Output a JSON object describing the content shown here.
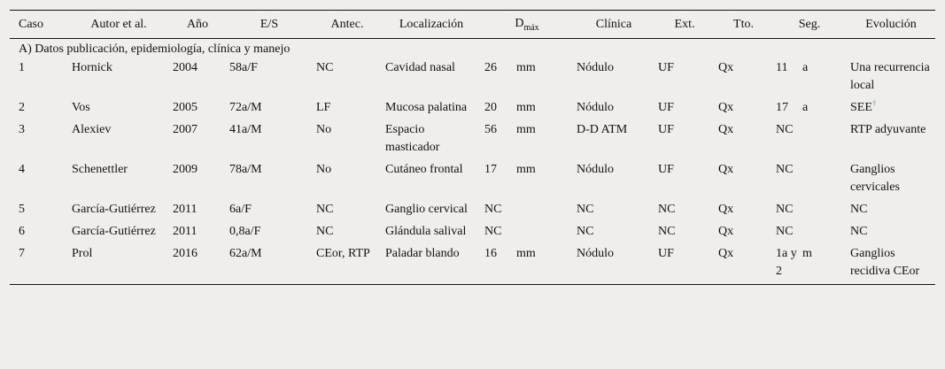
{
  "headers": {
    "caso": "Caso",
    "autor": "Autor et al.",
    "anio": "Año",
    "es": "E/S",
    "antec": "Antec.",
    "localizacion": "Localización",
    "dmax_main": "D",
    "dmax_sub": "máx",
    "clinica": "Clínica",
    "ext": "Ext.",
    "tto": "Tto.",
    "seg": "Seg.",
    "evolucion": "Evolución"
  },
  "section_label": "A) Datos publicación, epidemiología, clínica y manejo",
  "rows": [
    {
      "caso": "1",
      "autor": "Hornick",
      "anio": "2004",
      "es": "58a/F",
      "antec": "NC",
      "loc": "Cavidad nasal",
      "dmax_n": "26",
      "dmax_u": "mm",
      "clinica": "Nódulo",
      "ext": "UF",
      "tto": "Qx",
      "seg_n": "11",
      "seg_u": "a",
      "evol": "Una recurrencia local",
      "mark": ""
    },
    {
      "caso": "2",
      "autor": "Vos",
      "anio": "2005",
      "es": "72a/M",
      "antec": "LF",
      "loc": "Mucosa palatina",
      "dmax_n": "20",
      "dmax_u": "mm",
      "clinica": "Nódulo",
      "ext": "UF",
      "tto": "Qx",
      "seg_n": "17",
      "seg_u": "a",
      "evol": "SEE",
      "mark": "†"
    },
    {
      "caso": "3",
      "autor": "Alexiev",
      "anio": "2007",
      "es": "41a/M",
      "antec": "No",
      "loc": "Espacio masticador",
      "dmax_n": "56",
      "dmax_u": "mm",
      "clinica": "D-D ATM",
      "ext": "UF",
      "tto": "Qx",
      "seg_n": "NC",
      "seg_u": "",
      "evol": "RTP adyuvante",
      "mark": ""
    },
    {
      "caso": "4",
      "autor": "Schenettler",
      "anio": "2009",
      "es": "78a/M",
      "antec": "No",
      "loc": "Cutáneo frontal",
      "dmax_n": "17",
      "dmax_u": "mm",
      "clinica": "Nódulo",
      "ext": "UF",
      "tto": "Qx",
      "seg_n": "NC",
      "seg_u": "",
      "evol": "Ganglios cervicales",
      "mark": ""
    },
    {
      "caso": "5",
      "autor": "García-Gutiérrez",
      "anio": "2011",
      "es": "6a/F",
      "antec": "NC",
      "loc": "Ganglio cervical",
      "dmax_n": "NC",
      "dmax_u": "",
      "clinica": "NC",
      "ext": "NC",
      "tto": "Qx",
      "seg_n": "NC",
      "seg_u": "",
      "evol": "NC",
      "mark": ""
    },
    {
      "caso": "6",
      "autor": "García-Gutiérrez",
      "anio": "2011",
      "es": "0,8a/F",
      "antec": "NC",
      "loc": "Glándula salival",
      "dmax_n": "NC",
      "dmax_u": "",
      "clinica": "NC",
      "ext": "NC",
      "tto": "Qx",
      "seg_n": "NC",
      "seg_u": "",
      "evol": "NC",
      "mark": ""
    },
    {
      "caso": "7",
      "autor": "Prol",
      "anio": "2016",
      "es": "62a/M",
      "antec": "CEor, RTP",
      "loc": "Paladar blando",
      "dmax_n": "16",
      "dmax_u": "mm",
      "clinica": "Nódulo",
      "ext": "UF",
      "tto": "Qx",
      "seg_n": "1a y 2",
      "seg_u": "m",
      "evol": "Ganglios recidiva CEor",
      "mark": ""
    }
  ]
}
